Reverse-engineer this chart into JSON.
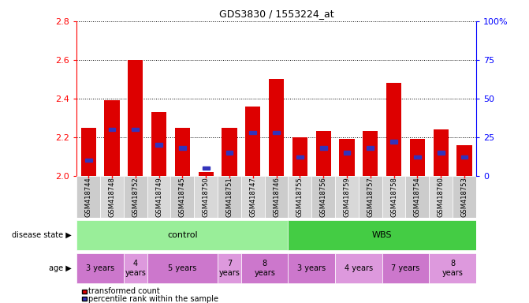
{
  "title": "GDS3830 / 1553224_at",
  "samples": [
    "GSM418744",
    "GSM418748",
    "GSM418752",
    "GSM418749",
    "GSM418745",
    "GSM418750",
    "GSM418751",
    "GSM418747",
    "GSM418746",
    "GSM418755",
    "GSM418756",
    "GSM418759",
    "GSM418757",
    "GSM418758",
    "GSM418754",
    "GSM418760",
    "GSM418753"
  ],
  "transformed_count": [
    2.25,
    2.39,
    2.6,
    2.33,
    2.25,
    2.02,
    2.25,
    2.36,
    2.5,
    2.2,
    2.23,
    2.19,
    2.23,
    2.48,
    2.19,
    2.24,
    2.16
  ],
  "percentile_rank": [
    10,
    30,
    30,
    20,
    18,
    5,
    15,
    28,
    28,
    12,
    18,
    15,
    18,
    22,
    12,
    15,
    12
  ],
  "ymin": 2.0,
  "ymax": 2.8,
  "y_ticks": [
    2.0,
    2.2,
    2.4,
    2.6,
    2.8
  ],
  "y_ticks_right": [
    0,
    25,
    50,
    75,
    100
  ],
  "bar_color": "#dd0000",
  "blue_color": "#3333bb",
  "bg_color": "#ffffff",
  "sample_label_bg": "#cccccc",
  "disease_state_control_color": "#99ee99",
  "disease_state_wbs_color": "#44cc44",
  "age_colors": [
    "#cc77cc",
    "#dd99dd",
    "#cc77cc",
    "#dd99dd",
    "#cc77cc",
    "#cc77cc",
    "#dd99dd",
    "#cc77cc",
    "#dd99dd"
  ],
  "disease_groups": [
    {
      "label": "control",
      "start": 0,
      "end": 9,
      "color": "#99ee99"
    },
    {
      "label": "WBS",
      "start": 9,
      "end": 17,
      "color": "#44cc44"
    }
  ],
  "age_groups": [
    {
      "label": "3 years",
      "start": 0,
      "end": 2
    },
    {
      "label": "4\nyears",
      "start": 2,
      "end": 3
    },
    {
      "label": "5 years",
      "start": 3,
      "end": 6
    },
    {
      "label": "7\nyears",
      "start": 6,
      "end": 7
    },
    {
      "label": "8\nyears",
      "start": 7,
      "end": 9
    },
    {
      "label": "3 years",
      "start": 9,
      "end": 11
    },
    {
      "label": "4 years",
      "start": 11,
      "end": 13
    },
    {
      "label": "7 years",
      "start": 13,
      "end": 15
    },
    {
      "label": "8\nyears",
      "start": 15,
      "end": 17
    }
  ]
}
